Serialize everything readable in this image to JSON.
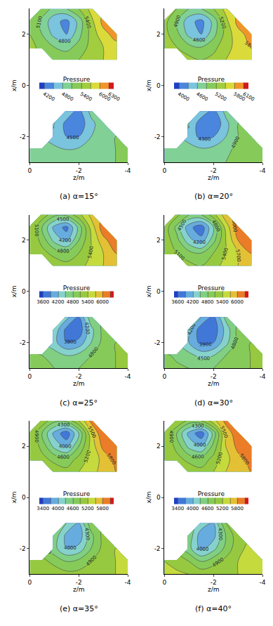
{
  "chart_data": [
    {
      "type": "contour",
      "title": "(a) α=15°",
      "x_label": "z/m",
      "y_label": "x/m",
      "xlim": [
        0,
        -4
      ],
      "xticks": [
        0,
        -2,
        -4
      ],
      "ylim": [
        -3,
        3
      ],
      "yticks": [
        -2,
        0,
        2
      ],
      "grid_z": [
        0,
        -0.5,
        -1,
        -1.5,
        -2,
        -2.5,
        -3,
        -3.5,
        -4
      ],
      "regions": [
        {
          "grid_x": [
            1,
            1.5,
            2,
            2.5,
            3
          ],
          "cells": [
            [
              null,
              null,
              5400,
              5300,
              5400,
              5600,
              5700,
              5800,
              null
            ],
            [
              5500,
              5300,
              5100,
              5000,
              5200,
              5500,
              5700,
              5900,
              null
            ],
            [
              5400,
              5100,
              4700,
              4500,
              5000,
              5500,
              5900,
              6100,
              null
            ],
            [
              5400,
              5000,
              4600,
              4400,
              4900,
              5600,
              6100,
              null,
              null
            ],
            [
              null,
              5300,
              5000,
              5100,
              5400,
              5800,
              null,
              null,
              null
            ]
          ]
        },
        {
          "grid_x": [
            -3,
            -2.5,
            -2,
            -1.5,
            -1
          ],
          "cells": [
            [
              5000,
              4950,
              4900,
              4900,
              4950,
              5000,
              5050,
              5100,
              5150
            ],
            [
              4950,
              4900,
              4850,
              4800,
              4850,
              4950,
              5050,
              5100,
              5150
            ],
            [
              null,
              null,
              4700,
              4500,
              4500,
              4800,
              5000,
              5100,
              null
            ],
            [
              null,
              null,
              4800,
              4400,
              4300,
              4700,
              5000,
              null,
              null
            ],
            [
              null,
              null,
              null,
              4700,
              4400,
              4900,
              null,
              null,
              null
            ]
          ]
        }
      ],
      "contour_levels": {
        "start": 4200,
        "end": 6300,
        "size": 300
      },
      "colorbar": {
        "title": "Pressure",
        "range": [
          4200,
          6300
        ],
        "ticks": [
          4200,
          4800,
          5400,
          6000,
          6300
        ]
      }
    },
    {
      "type": "contour",
      "title": "(b) α=20°",
      "x_label": "z/m",
      "y_label": "x/m",
      "xlim": [
        0,
        -4
      ],
      "xticks": [
        0,
        -2,
        -4
      ],
      "ylim": [
        -3,
        3
      ],
      "yticks": [
        -2,
        0,
        2
      ],
      "grid_z": [
        0,
        -0.5,
        -1,
        -1.5,
        -2,
        -2.5,
        -3,
        -3.5,
        -4
      ],
      "regions": [
        {
          "grid_x": [
            1,
            1.5,
            2,
            2.5,
            3
          ],
          "cells": [
            [
              null,
              null,
              5300,
              5200,
              5300,
              5500,
              5600,
              5700,
              null
            ],
            [
              5400,
              5200,
              5000,
              4900,
              5100,
              5400,
              5600,
              5800,
              null
            ],
            [
              5300,
              5000,
              4500,
              4300,
              4800,
              5300,
              5700,
              5900,
              null
            ],
            [
              5300,
              4900,
              4400,
              4200,
              4700,
              5400,
              5900,
              null,
              null
            ],
            [
              null,
              5200,
              4900,
              4900,
              5200,
              5600,
              null,
              null,
              null
            ]
          ]
        },
        {
          "grid_x": [
            -3,
            -2.5,
            -2,
            -1.5,
            -1
          ],
          "cells": [
            [
              4900,
              4850,
              4800,
              4800,
              4850,
              4900,
              4950,
              5000,
              5100
            ],
            [
              4850,
              4800,
              4700,
              4650,
              4700,
              4850,
              4950,
              5000,
              5100
            ],
            [
              null,
              null,
              4500,
              4200,
              4300,
              4600,
              4900,
              5000,
              null
            ],
            [
              null,
              null,
              4600,
              4100,
              4000,
              4500,
              4900,
              null,
              null
            ],
            [
              null,
              null,
              null,
              4500,
              4200,
              4700,
              null,
              null,
              null
            ]
          ]
        }
      ],
      "contour_levels": {
        "start": 4000,
        "end": 6100,
        "size": 300
      },
      "colorbar": {
        "title": "Pressure",
        "range": [
          4000,
          6100
        ],
        "ticks": [
          4000,
          4600,
          5200,
          5800,
          6100
        ]
      }
    },
    {
      "type": "contour",
      "title": "(c) α=25°",
      "x_label": "z/m",
      "y_label": "x/m",
      "xlim": [
        0,
        -4
      ],
      "xticks": [
        0,
        -2,
        -4
      ],
      "ylim": [
        -3,
        3
      ],
      "yticks": [
        -2,
        0,
        2
      ],
      "grid_z": [
        0,
        -0.5,
        -1,
        -1.5,
        -2,
        -2.5,
        -3,
        -3.5,
        -4
      ],
      "regions": [
        {
          "grid_x": [
            1,
            1.5,
            2,
            2.5,
            3
          ],
          "cells": [
            [
              null,
              null,
              5300,
              5200,
              5300,
              5500,
              5700,
              5900,
              null
            ],
            [
              5400,
              5200,
              5000,
              4900,
              5100,
              5400,
              5700,
              6000,
              null
            ],
            [
              5400,
              5000,
              4400,
              4100,
              4800,
              5400,
              5900,
              6200,
              null
            ],
            [
              5400,
              4800,
              4100,
              3800,
              4600,
              5500,
              6200,
              null,
              null
            ],
            [
              null,
              5300,
              4900,
              4900,
              5300,
              5800,
              null,
              null,
              null
            ]
          ]
        },
        {
          "grid_x": [
            -3,
            -2.5,
            -2,
            -1.5,
            -1
          ],
          "cells": [
            [
              4900,
              4850,
              4800,
              4750,
              4800,
              4900,
              5000,
              5100,
              5200
            ],
            [
              4850,
              4800,
              4650,
              4500,
              4600,
              4800,
              5000,
              5100,
              5200
            ],
            [
              null,
              null,
              4300,
              3900,
              4000,
              4500,
              4900,
              5100,
              null
            ],
            [
              null,
              null,
              4400,
              3800,
              3700,
              4400,
              4900,
              null,
              null
            ],
            [
              null,
              null,
              null,
              4300,
              3900,
              4700,
              null,
              null,
              null
            ]
          ]
        }
      ],
      "contour_levels": {
        "start": 3600,
        "end": 6300,
        "size": 300
      },
      "colorbar": {
        "title": "Pressure",
        "range": [
          3600,
          6300
        ],
        "ticks": [
          3600,
          4200,
          4800,
          5400,
          6000
        ]
      }
    },
    {
      "type": "contour",
      "title": "(d) α=30°",
      "x_label": "z/m",
      "y_label": "x/m",
      "xlim": [
        0,
        -4
      ],
      "xticks": [
        0,
        -2,
        -4
      ],
      "ylim": [
        -3,
        3
      ],
      "yticks": [
        -2,
        0,
        2
      ],
      "grid_z": [
        0,
        -0.5,
        -1,
        -1.5,
        -2,
        -2.5,
        -3,
        -3.5,
        -4
      ],
      "regions": [
        {
          "grid_x": [
            1,
            1.5,
            2,
            2.5,
            3
          ],
          "cells": [
            [
              null,
              null,
              5200,
              5100,
              5300,
              5500,
              5700,
              5900,
              null
            ],
            [
              5300,
              5100,
              4900,
              4800,
              5100,
              5400,
              5700,
              6000,
              null
            ],
            [
              5300,
              4900,
              4300,
              4000,
              4700,
              5400,
              6000,
              6200,
              null
            ],
            [
              5300,
              4700,
              4000,
              3700,
              4500,
              5500,
              6200,
              null,
              null
            ],
            [
              null,
              5200,
              4800,
              4800,
              5300,
              5900,
              null,
              null,
              null
            ]
          ]
        },
        {
          "grid_x": [
            -3,
            -2.5,
            -2,
            -1.5,
            -1
          ],
          "cells": [
            [
              4900,
              4850,
              4800,
              4750,
              4800,
              4900,
              5000,
              5100,
              5200
            ],
            [
              4850,
              4750,
              4600,
              4400,
              4500,
              4800,
              5000,
              5100,
              5200
            ],
            [
              null,
              null,
              4200,
              3800,
              3900,
              4400,
              4900,
              5100,
              null
            ],
            [
              null,
              null,
              4300,
              3700,
              3700,
              4300,
              4900,
              null,
              null
            ],
            [
              null,
              null,
              null,
              4200,
              3800,
              4600,
              null,
              null,
              null
            ]
          ]
        }
      ],
      "contour_levels": {
        "start": 3600,
        "end": 6300,
        "size": 300
      },
      "colorbar": {
        "title": "Pressure",
        "range": [
          3600,
          6300
        ],
        "ticks": [
          3600,
          4200,
          4800,
          5400,
          6000
        ]
      }
    },
    {
      "type": "contour",
      "title": "(e) α=35°",
      "x_label": "z/m",
      "y_label": "x/m",
      "xlim": [
        0,
        -4
      ],
      "xticks": [
        0,
        -2,
        -4
      ],
      "ylim": [
        -3,
        3
      ],
      "yticks": [
        -2,
        0,
        2
      ],
      "grid_z": [
        0,
        -0.5,
        -1,
        -1.5,
        -2,
        -2.5,
        -3,
        -3.5,
        -4
      ],
      "regions": [
        {
          "grid_x": [
            1,
            1.5,
            2,
            2.5,
            3
          ],
          "cells": [
            [
              null,
              null,
              5100,
              5000,
              5200,
              5400,
              5600,
              5800,
              null
            ],
            [
              5200,
              5000,
              4800,
              4700,
              5000,
              5300,
              5600,
              5900,
              null
            ],
            [
              5200,
              4800,
              4200,
              3900,
              4600,
              5300,
              5900,
              6100,
              null
            ],
            [
              5200,
              4600,
              3900,
              3500,
              4300,
              5400,
              6100,
              null,
              null
            ],
            [
              null,
              5100,
              4700,
              4700,
              5200,
              5900,
              null,
              null,
              null
            ]
          ]
        },
        {
          "grid_x": [
            -3,
            -2.5,
            -2,
            -1.5,
            -1
          ],
          "cells": [
            [
              5200,
              5150,
              5100,
              5000,
              5000,
              5050,
              5100,
              5200,
              5300
            ],
            [
              5100,
              5000,
              4800,
              4600,
              4700,
              4900,
              5100,
              5200,
              5300
            ],
            [
              null,
              null,
              4400,
              4000,
              4100,
              4600,
              5000,
              5200,
              null
            ],
            [
              null,
              null,
              4500,
              3900,
              3800,
              4500,
              5000,
              null,
              null
            ],
            [
              null,
              null,
              null,
              4300,
              4000,
              4800,
              null,
              null,
              null
            ]
          ]
        }
      ],
      "contour_levels": {
        "start": 3400,
        "end": 6100,
        "size": 300
      },
      "colorbar": {
        "title": "Pressure",
        "range": [
          3400,
          6200
        ],
        "ticks": [
          3400,
          4000,
          4600,
          5200,
          5800
        ]
      }
    },
    {
      "type": "contour",
      "title": "(f) α=40°",
      "x_label": "z/m",
      "y_label": "x/m",
      "xlim": [
        0,
        -4
      ],
      "xticks": [
        0,
        -2,
        -4
      ],
      "ylim": [
        -3,
        3
      ],
      "yticks": [
        -2,
        0,
        2
      ],
      "grid_z": [
        0,
        -0.5,
        -1,
        -1.5,
        -2,
        -2.5,
        -3,
        -3.5,
        -4
      ],
      "regions": [
        {
          "grid_x": [
            1,
            1.5,
            2,
            2.5,
            3
          ],
          "cells": [
            [
              null,
              null,
              5100,
              5000,
              5200,
              5500,
              5700,
              5800,
              null
            ],
            [
              5200,
              5000,
              4800,
              4700,
              5000,
              5400,
              5700,
              5900,
              null
            ],
            [
              5200,
              4800,
              4200,
              4000,
              4700,
              5500,
              5900,
              6000,
              null
            ],
            [
              5200,
              4600,
              3900,
              3500,
              4400,
              5600,
              6000,
              null,
              null
            ],
            [
              null,
              5200,
              4800,
              4900,
              5400,
              5900,
              null,
              null,
              null
            ]
          ]
        },
        {
          "grid_x": [
            -3,
            -2.5,
            -2,
            -1.5,
            -1
          ],
          "cells": [
            [
              5300,
              5250,
              5200,
              5100,
              5100,
              5150,
              5200,
              5300,
              5400
            ],
            [
              5200,
              5100,
              4900,
              4600,
              4800,
              5000,
              5200,
              5300,
              5400
            ],
            [
              null,
              null,
              4400,
              3900,
              4200,
              4700,
              5100,
              5300,
              null
            ],
            [
              null,
              null,
              4500,
              3800,
              3900,
              4600,
              5100,
              null,
              null
            ],
            [
              null,
              null,
              null,
              4200,
              4000,
              4900,
              null,
              null,
              null
            ]
          ]
        }
      ],
      "contour_levels": {
        "start": 3400,
        "end": 6100,
        "size": 300
      },
      "colorbar": {
        "title": "Pressure",
        "range": [
          3400,
          6100
        ],
        "ticks": [
          3400,
          4000,
          4600,
          5200,
          5800
        ]
      }
    }
  ]
}
